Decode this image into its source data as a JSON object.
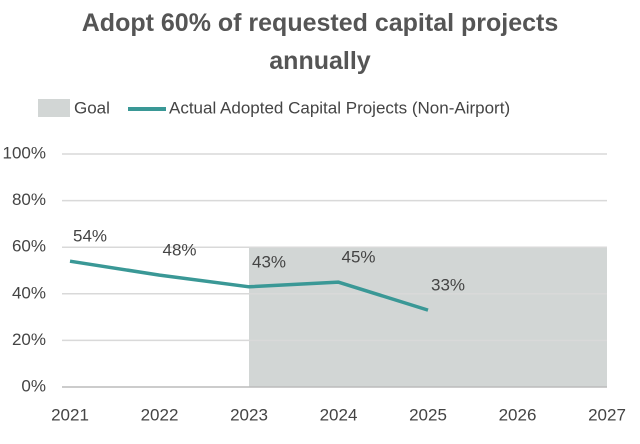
{
  "chart_data": {
    "type": "line",
    "title": "Adopt 60% of requested capital projects annually",
    "x": [
      2021,
      2022,
      2023,
      2024,
      2025
    ],
    "series": [
      {
        "name": "Actual Adopted Capital Projects (Non-Airport)",
        "color": "#3a9896",
        "values": [
          54,
          48,
          43,
          45,
          33
        ],
        "value_labels": [
          "54%",
          "48%",
          "43%",
          "45%",
          "33%"
        ]
      }
    ],
    "goal": {
      "name": "Goal",
      "color": "#d2d6d5",
      "x": [
        2023,
        2027
      ],
      "value": 60
    },
    "xlim": [
      2021,
      2027
    ],
    "xticks": [
      2021,
      2022,
      2023,
      2024,
      2025,
      2026,
      2027
    ],
    "ylim": [
      0,
      100
    ],
    "yticks": [
      {
        "value": 0,
        "label": "0%"
      },
      {
        "value": 20,
        "label": "20%"
      },
      {
        "value": 40,
        "label": "40%"
      },
      {
        "value": 60,
        "label": "60%"
      },
      {
        "value": 80,
        "label": "80%"
      },
      {
        "value": 100,
        "label": "100%"
      }
    ],
    "grid": true
  }
}
